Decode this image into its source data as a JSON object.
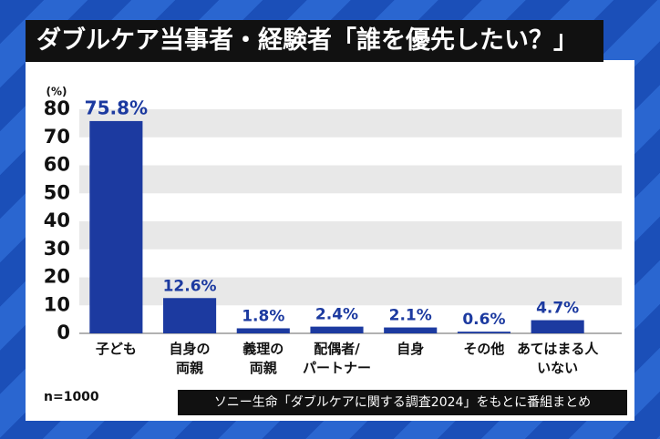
{
  "chart_data": {
    "type": "bar",
    "title": "ダブルケア当事者・経験者「誰を優先したい？」",
    "y_label": "(%)",
    "categories": [
      "子ども",
      "自身の\n両親",
      "義理の\n両親",
      "配偶者/\nパートナー",
      "自身",
      "その他",
      "あてはまる人\nいない"
    ],
    "values": [
      75.8,
      12.6,
      1.8,
      2.4,
      2.1,
      0.6,
      4.7
    ],
    "value_labels": [
      "75.8%",
      "12.6%",
      "1.8%",
      "2.4%",
      "2.1%",
      "0.6%",
      "4.7%"
    ],
    "color": "#1c3aa0",
    "ylim": [
      0,
      80
    ],
    "yticks": [
      0,
      10,
      20,
      30,
      40,
      50,
      60,
      70,
      80
    ],
    "grid": true,
    "note": "n=1000",
    "source": "ソニー生命「ダブルケアに関する調査2024」をもとに番組まとめ"
  }
}
